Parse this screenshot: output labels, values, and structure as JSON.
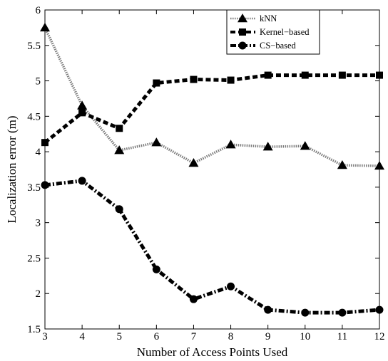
{
  "chart_data": {
    "type": "line",
    "title": "",
    "xlabel": "Number of Access Points Used",
    "ylabel": "Localization error (m)",
    "xlim": [
      3,
      12
    ],
    "ylim": [
      1.5,
      6
    ],
    "x_ticks": [
      "3",
      "4",
      "5",
      "6",
      "7",
      "8",
      "9",
      "10",
      "11",
      "12"
    ],
    "y_ticks": [
      "1.5",
      "2",
      "2.5",
      "3",
      "3.5",
      "4",
      "4.5",
      "5",
      "5.5",
      "6"
    ],
    "x_tick_values": [
      3,
      4,
      5,
      6,
      7,
      8,
      9,
      10,
      11,
      12
    ],
    "y_tick_values": [
      1.5,
      2,
      2.5,
      3,
      3.5,
      4,
      4.5,
      5,
      5.5,
      6
    ],
    "grid": false,
    "legend_position": "top-right",
    "x": [
      3,
      4,
      5,
      6,
      7,
      8,
      9,
      10,
      11,
      12
    ],
    "series": [
      {
        "name": "kNN",
        "marker": "triangle",
        "line_style": "dotted",
        "color": "#000000",
        "values": [
          5.75,
          4.65,
          4.02,
          4.13,
          3.84,
          4.1,
          4.07,
          4.08,
          3.81,
          3.8
        ]
      },
      {
        "name": "Kernel−based",
        "marker": "square",
        "line_style": "dashed",
        "color": "#000000",
        "values": [
          4.13,
          4.55,
          4.33,
          4.97,
          5.02,
          5.01,
          5.08,
          5.08,
          5.08,
          5.08
        ]
      },
      {
        "name": "CS−based",
        "marker": "circle",
        "line_style": "dash-dot",
        "color": "#000000",
        "values": [
          3.53,
          3.59,
          3.19,
          2.34,
          1.92,
          2.1,
          1.77,
          1.73,
          1.73,
          1.77
        ]
      }
    ]
  }
}
